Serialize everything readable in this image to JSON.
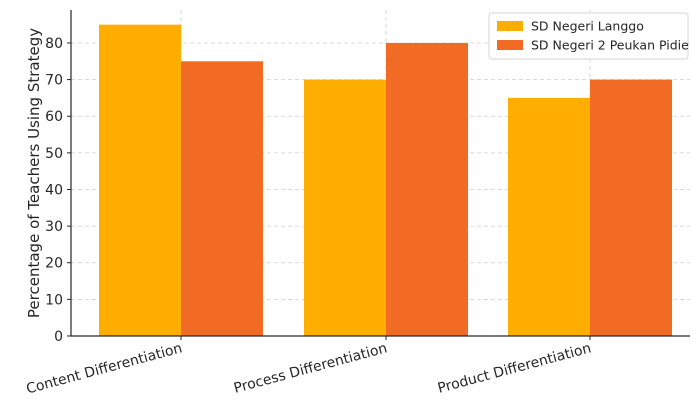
{
  "chart_data": {
    "type": "bar",
    "title": "",
    "xlabel": "",
    "ylabel": "Percentage of Teachers Using Strategy",
    "categories": [
      "Content Differentiation",
      "Process Differentiation",
      "Product Differentiation"
    ],
    "series": [
      {
        "name": "SD Negeri Langgo",
        "values": [
          85,
          70,
          65
        ],
        "color": "#FFAE00"
      },
      {
        "name": "SD Negeri 2 Peukan Pidie",
        "values": [
          75,
          80,
          70
        ],
        "color": "#F26B24"
      }
    ],
    "ylim": [
      0,
      89
    ],
    "yticks": [
      0,
      10,
      20,
      30,
      40,
      50,
      60,
      70,
      80
    ],
    "grid": true,
    "legend_position": "top-right"
  }
}
